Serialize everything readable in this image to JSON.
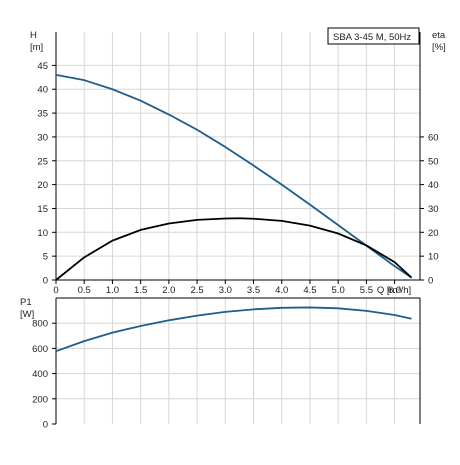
{
  "chart_data": [
    {
      "type": "line",
      "legend_text": "SBA 3-45 M, 50Hz",
      "left_axis_label": [
        "H",
        "[m]"
      ],
      "right_axis_label": [
        "eta",
        "[%]"
      ],
      "x_axis_label": "Q [m³/h]",
      "xlim": [
        0,
        6.45
      ],
      "ylim": [
        0,
        52
      ],
      "right_ylim": [
        0,
        104
      ],
      "x_ticks": [
        0,
        0.5,
        1.0,
        1.5,
        2.0,
        2.5,
        3.0,
        3.5,
        4.0,
        4.5,
        5.0,
        5.5,
        6.0
      ],
      "x_tick_labels": [
        "0",
        "0.5",
        "1.0",
        "1.5",
        "2.0",
        "2.5",
        "3.0",
        "3.5",
        "4.0",
        "4.5",
        "5.0",
        "5.5",
        "6.0"
      ],
      "y_ticks": [
        0,
        5,
        10,
        15,
        20,
        25,
        30,
        35,
        40,
        45
      ],
      "y_tick_labels": [
        "0",
        "5",
        "10",
        "15",
        "20",
        "25",
        "30",
        "35",
        "40",
        "45"
      ],
      "right_ticks": [
        0,
        10,
        20,
        30,
        40,
        50,
        60
      ],
      "right_tick_labels": [
        "0",
        "10",
        "20",
        "30",
        "40",
        "50",
        "60"
      ],
      "grid": true,
      "series": [
        {
          "id": "head",
          "axis": "left",
          "color": "#1f5d8c",
          "x": [
            0,
            0.5,
            1.0,
            1.5,
            2.0,
            2.5,
            3.0,
            3.5,
            4.0,
            4.5,
            5.0,
            5.5,
            6.0,
            6.3
          ],
          "y": [
            43.0,
            41.9,
            40.0,
            37.6,
            34.7,
            31.5,
            27.9,
            24.0,
            20.0,
            15.8,
            11.5,
            7.2,
            2.9,
            0.5
          ]
        },
        {
          "id": "efficiency",
          "axis": "right",
          "color": "#000000",
          "x": [
            0,
            0.5,
            1.0,
            1.5,
            2.0,
            2.5,
            3.0,
            3.25,
            3.5,
            4.0,
            4.5,
            5.0,
            5.5,
            6.0,
            6.3
          ],
          "y": [
            0,
            9.5,
            16.5,
            21.0,
            23.7,
            25.2,
            25.8,
            25.9,
            25.7,
            24.8,
            22.8,
            19.5,
            14.5,
            7.5,
            1.0
          ]
        }
      ]
    },
    {
      "type": "line",
      "left_axis_label": [
        "P1",
        "[W]"
      ],
      "xlim": [
        0,
        6.45
      ],
      "ylim": [
        0,
        1000
      ],
      "y_ticks": [
        0,
        200,
        400,
        600,
        800
      ],
      "y_tick_labels": [
        "0",
        "200",
        "400",
        "600",
        "800"
      ],
      "grid": true,
      "series": [
        {
          "id": "power",
          "color": "#1f5d8c",
          "x": [
            0,
            0.5,
            1.0,
            1.5,
            2.0,
            2.5,
            3.0,
            3.5,
            4.0,
            4.5,
            5.0,
            5.5,
            6.0,
            6.3
          ],
          "y": [
            578,
            658,
            725,
            778,
            823,
            860,
            890,
            910,
            922,
            925,
            918,
            898,
            865,
            835
          ]
        }
      ]
    }
  ]
}
